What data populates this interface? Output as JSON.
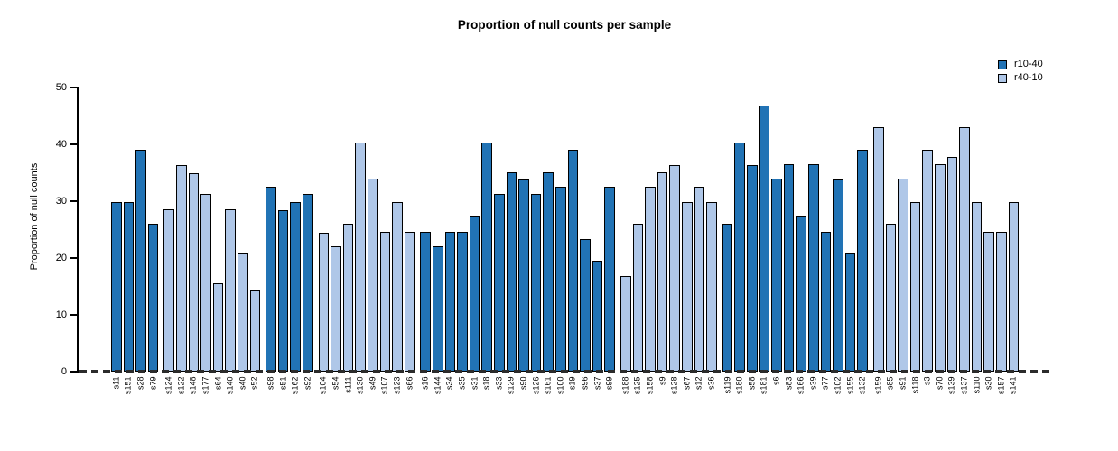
{
  "chart_data": {
    "type": "bar",
    "title": "Proportion of null counts per sample",
    "ylabel": "Proportion of null counts",
    "xlabel": "",
    "ylim": [
      0,
      50
    ],
    "yticks": [
      0,
      10,
      20,
      30,
      40,
      50
    ],
    "grid": false,
    "legend_position": "top-right",
    "legend": [
      {
        "label": "r10-40",
        "color": "#2173B5"
      },
      {
        "label": "r40-10",
        "color": "#AFC7E8"
      }
    ],
    "baseline_style": "dashed",
    "groups": [
      {
        "series": "r10-40",
        "labels": [
          "s11",
          "s151",
          "s28",
          "s79"
        ],
        "values": [
          29.8,
          29.8,
          39.0,
          26.0
        ]
      },
      {
        "series": "r40-10",
        "labels": [
          "s124",
          "s122",
          "s148",
          "s177",
          "s64",
          "s140",
          "s40",
          "s52"
        ],
        "values": [
          28.6,
          36.3,
          34.9,
          31.3,
          15.6,
          28.6,
          20.8,
          14.3
        ]
      },
      {
        "series": "r10-40",
        "labels": [
          "s98",
          "s51",
          "s162",
          "s92"
        ],
        "values": [
          32.5,
          28.4,
          29.8,
          31.3
        ]
      },
      {
        "series": "r40-10",
        "labels": [
          "s104",
          "s54",
          "s111",
          "s130",
          "s49",
          "s107",
          "s123",
          "s66"
        ],
        "values": [
          24.4,
          22.1,
          26.0,
          40.3,
          34.0,
          24.6,
          29.8,
          24.6
        ]
      },
      {
        "series": "r10-40",
        "labels": [
          "s16",
          "s144",
          "s34",
          "s35",
          "s31",
          "s18",
          "s33",
          "s129",
          "s90",
          "s126",
          "s161",
          "s100",
          "s19",
          "s96",
          "s37",
          "s99"
        ],
        "values": [
          24.6,
          22.1,
          24.6,
          24.6,
          27.3,
          40.3,
          31.3,
          35.1,
          33.8,
          31.3,
          35.1,
          32.5,
          39.0,
          23.3,
          19.5,
          32.5
        ]
      },
      {
        "series": "r40-10",
        "labels": [
          "s188",
          "s125",
          "s158",
          "s9",
          "s128",
          "s67",
          "s12",
          "s36"
        ],
        "values": [
          16.8,
          26.0,
          32.5,
          35.1,
          36.3,
          29.8,
          32.5,
          29.8
        ]
      },
      {
        "series": "r10-40",
        "labels": [
          "s119",
          "s180",
          "s58",
          "s181",
          "s6",
          "s83",
          "s166",
          "s39",
          "s77",
          "s102",
          "s155",
          "s132"
        ],
        "values": [
          26.0,
          40.3,
          36.3,
          46.8,
          34.0,
          36.5,
          27.3,
          36.5,
          24.6,
          33.8,
          20.8,
          39.0
        ]
      },
      {
        "series": "r40-10",
        "labels": [
          "s159",
          "s85",
          "s91",
          "s118",
          "s3",
          "s70",
          "s139",
          "s137",
          "s110",
          "s30",
          "s157",
          "s141"
        ],
        "values": [
          43.0,
          26.0,
          34.0,
          29.8,
          39.0,
          36.5,
          37.8,
          43.0,
          29.8,
          24.6,
          24.6,
          29.8
        ]
      }
    ]
  }
}
